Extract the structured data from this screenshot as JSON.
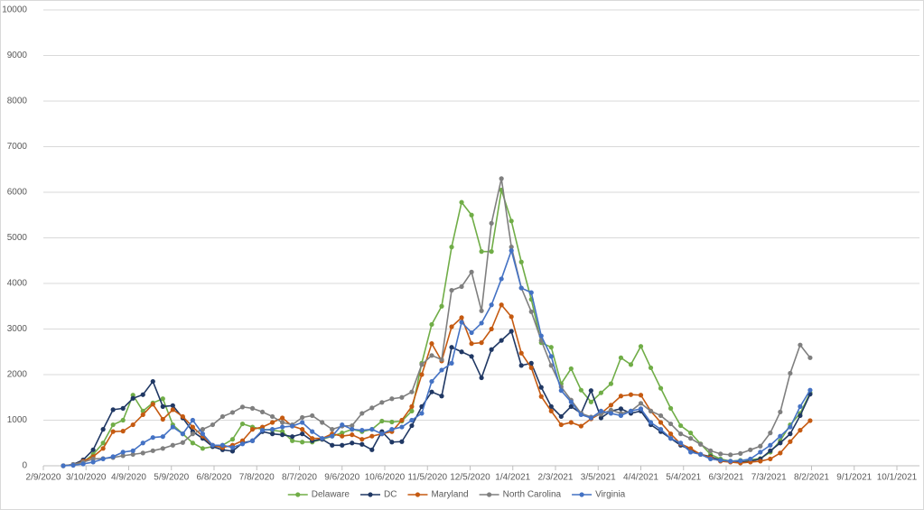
{
  "chart_data": {
    "type": "line",
    "x": [
      "2020-02-23",
      "2020-03-01",
      "2020-03-08",
      "2020-03-15",
      "2020-03-22",
      "2020-03-29",
      "2020-04-05",
      "2020-04-12",
      "2020-04-19",
      "2020-04-26",
      "2020-05-03",
      "2020-05-10",
      "2020-05-17",
      "2020-05-24",
      "2020-05-31",
      "2020-06-07",
      "2020-06-14",
      "2020-06-21",
      "2020-06-28",
      "2020-07-05",
      "2020-07-12",
      "2020-07-19",
      "2020-07-26",
      "2020-08-02",
      "2020-08-09",
      "2020-08-16",
      "2020-08-23",
      "2020-08-30",
      "2020-09-06",
      "2020-09-13",
      "2020-09-20",
      "2020-09-27",
      "2020-10-04",
      "2020-10-11",
      "2020-10-18",
      "2020-10-25",
      "2020-11-01",
      "2020-11-08",
      "2020-11-15",
      "2020-11-22",
      "2020-11-29",
      "2020-12-06",
      "2020-12-13",
      "2020-12-20",
      "2020-12-27",
      "2021-01-03",
      "2021-01-10",
      "2021-01-17",
      "2021-01-24",
      "2021-01-31",
      "2021-02-07",
      "2021-02-14",
      "2021-02-21",
      "2021-02-28",
      "2021-03-07",
      "2021-03-14",
      "2021-03-21",
      "2021-03-28",
      "2021-04-04",
      "2021-04-11",
      "2021-04-18",
      "2021-04-25",
      "2021-05-02",
      "2021-05-09",
      "2021-05-16",
      "2021-05-23",
      "2021-05-30",
      "2021-06-06",
      "2021-06-13",
      "2021-06-20",
      "2021-06-27",
      "2021-07-04",
      "2021-07-11",
      "2021-07-18",
      "2021-07-25",
      "2021-08-01"
    ],
    "series": [
      {
        "name": "Delaware",
        "color": "#70ad47",
        "values": [
          0,
          20,
          80,
          250,
          500,
          900,
          1000,
          1550,
          1200,
          1380,
          1470,
          900,
          700,
          500,
          380,
          420,
          450,
          580,
          920,
          850,
          800,
          780,
          750,
          550,
          520,
          520,
          580,
          650,
          720,
          800,
          750,
          800,
          980,
          960,
          980,
          1200,
          2250,
          3100,
          3500,
          4800,
          5780,
          5500,
          4700,
          4700,
          6050,
          5370,
          4470,
          3650,
          2700,
          2600,
          1800,
          2130,
          1660,
          1400,
          1600,
          1800,
          2370,
          2220,
          2620,
          2150,
          1700,
          1260,
          880,
          720,
          480,
          250,
          150,
          100,
          120,
          130,
          160,
          300,
          550,
          900,
          1150,
          1600
        ]
      },
      {
        "name": "DC",
        "color": "#203864",
        "values": [
          0,
          30,
          130,
          350,
          800,
          1230,
          1260,
          1480,
          1560,
          1850,
          1300,
          1320,
          1050,
          750,
          600,
          420,
          350,
          320,
          500,
          550,
          750,
          700,
          680,
          640,
          700,
          550,
          580,
          450,
          450,
          500,
          470,
          350,
          750,
          520,
          530,
          880,
          1300,
          1620,
          1530,
          2600,
          2500,
          2400,
          1930,
          2550,
          2750,
          2950,
          2200,
          2250,
          1720,
          1300,
          1080,
          1300,
          1150,
          1650,
          1050,
          1200,
          1250,
          1150,
          1200,
          900,
          750,
          600,
          450,
          350,
          250,
          200,
          120,
          100,
          80,
          100,
          150,
          330,
          500,
          700,
          1100,
          1570
        ]
      },
      {
        "name": "Maryland",
        "color": "#c55a11",
        "values": [
          0,
          20,
          100,
          200,
          380,
          750,
          760,
          900,
          1120,
          1350,
          1020,
          1230,
          1080,
          850,
          650,
          450,
          400,
          450,
          550,
          800,
          850,
          950,
          1050,
          870,
          800,
          600,
          600,
          700,
          650,
          680,
          580,
          650,
          700,
          750,
          1000,
          1300,
          2000,
          2680,
          2300,
          3050,
          3250,
          2680,
          2700,
          3000,
          3530,
          3270,
          2470,
          2150,
          1520,
          1200,
          900,
          950,
          870,
          1030,
          1150,
          1330,
          1530,
          1560,
          1550,
          1200,
          950,
          700,
          480,
          380,
          250,
          180,
          100,
          80,
          60,
          80,
          100,
          150,
          280,
          530,
          780,
          990
        ]
      },
      {
        "name": "North Carolina",
        "color": "#7f7f7f",
        "values": [
          0,
          30,
          80,
          150,
          160,
          180,
          220,
          250,
          280,
          330,
          380,
          450,
          510,
          700,
          800,
          900,
          1080,
          1170,
          1290,
          1260,
          1180,
          1080,
          950,
          900,
          1060,
          1100,
          950,
          800,
          870,
          880,
          1150,
          1270,
          1390,
          1470,
          1500,
          1620,
          2220,
          2420,
          2330,
          3850,
          3930,
          4250,
          3400,
          5320,
          6300,
          4800,
          3900,
          3380,
          2750,
          2200,
          1730,
          1440,
          1150,
          1070,
          1130,
          1220,
          1150,
          1200,
          1370,
          1200,
          1100,
          920,
          700,
          600,
          470,
          330,
          260,
          240,
          270,
          350,
          430,
          720,
          1180,
          2030,
          2650,
          2370
        ]
      },
      {
        "name": "Virginia",
        "color": "#4472c4",
        "values": [
          0,
          10,
          40,
          80,
          150,
          200,
          300,
          330,
          500,
          620,
          640,
          850,
          700,
          1000,
          700,
          450,
          450,
          400,
          480,
          550,
          780,
          800,
          850,
          870,
          950,
          750,
          600,
          650,
          900,
          800,
          780,
          800,
          700,
          800,
          850,
          1000,
          1150,
          1850,
          2100,
          2250,
          3150,
          2920,
          3130,
          3530,
          4100,
          4720,
          3900,
          3800,
          2850,
          2400,
          1650,
          1400,
          1120,
          1050,
          1200,
          1150,
          1100,
          1200,
          1250,
          950,
          800,
          600,
          500,
          300,
          250,
          150,
          120,
          100,
          110,
          150,
          300,
          450,
          650,
          850,
          1300,
          1660
        ]
      }
    ],
    "xlim": [
      "2020-02-09",
      "2021-10-01"
    ],
    "xticks": [
      {
        "value": "2020-02-09",
        "label": "2/9/2020"
      },
      {
        "value": "2020-03-10",
        "label": "3/10/2020"
      },
      {
        "value": "2020-04-09",
        "label": "4/9/2020"
      },
      {
        "value": "2020-05-09",
        "label": "5/9/2020"
      },
      {
        "value": "2020-06-08",
        "label": "6/8/2020"
      },
      {
        "value": "2020-07-08",
        "label": "7/8/2020"
      },
      {
        "value": "2020-08-07",
        "label": "8/7/2020"
      },
      {
        "value": "2020-09-06",
        "label": "9/6/2020"
      },
      {
        "value": "2020-10-06",
        "label": "10/6/2020"
      },
      {
        "value": "2020-11-05",
        "label": "11/5/2020"
      },
      {
        "value": "2020-12-05",
        "label": "12/5/2020"
      },
      {
        "value": "2021-01-04",
        "label": "1/4/2021"
      },
      {
        "value": "2021-02-03",
        "label": "2/3/2021"
      },
      {
        "value": "2021-03-05",
        "label": "3/5/2021"
      },
      {
        "value": "2021-04-04",
        "label": "4/4/2021"
      },
      {
        "value": "2021-05-04",
        "label": "5/4/2021"
      },
      {
        "value": "2021-06-03",
        "label": "6/3/2021"
      },
      {
        "value": "2021-07-03",
        "label": "7/3/2021"
      },
      {
        "value": "2021-08-02",
        "label": "8/2/2021"
      },
      {
        "value": "2021-09-01",
        "label": "9/1/2021"
      },
      {
        "value": "2021-10-01",
        "label": "10/1/2021"
      }
    ],
    "ylim": [
      0,
      10000
    ],
    "yticks": [
      0,
      1000,
      2000,
      3000,
      4000,
      5000,
      6000,
      7000,
      8000,
      9000,
      10000
    ],
    "grid": true,
    "legend": "bottom"
  }
}
